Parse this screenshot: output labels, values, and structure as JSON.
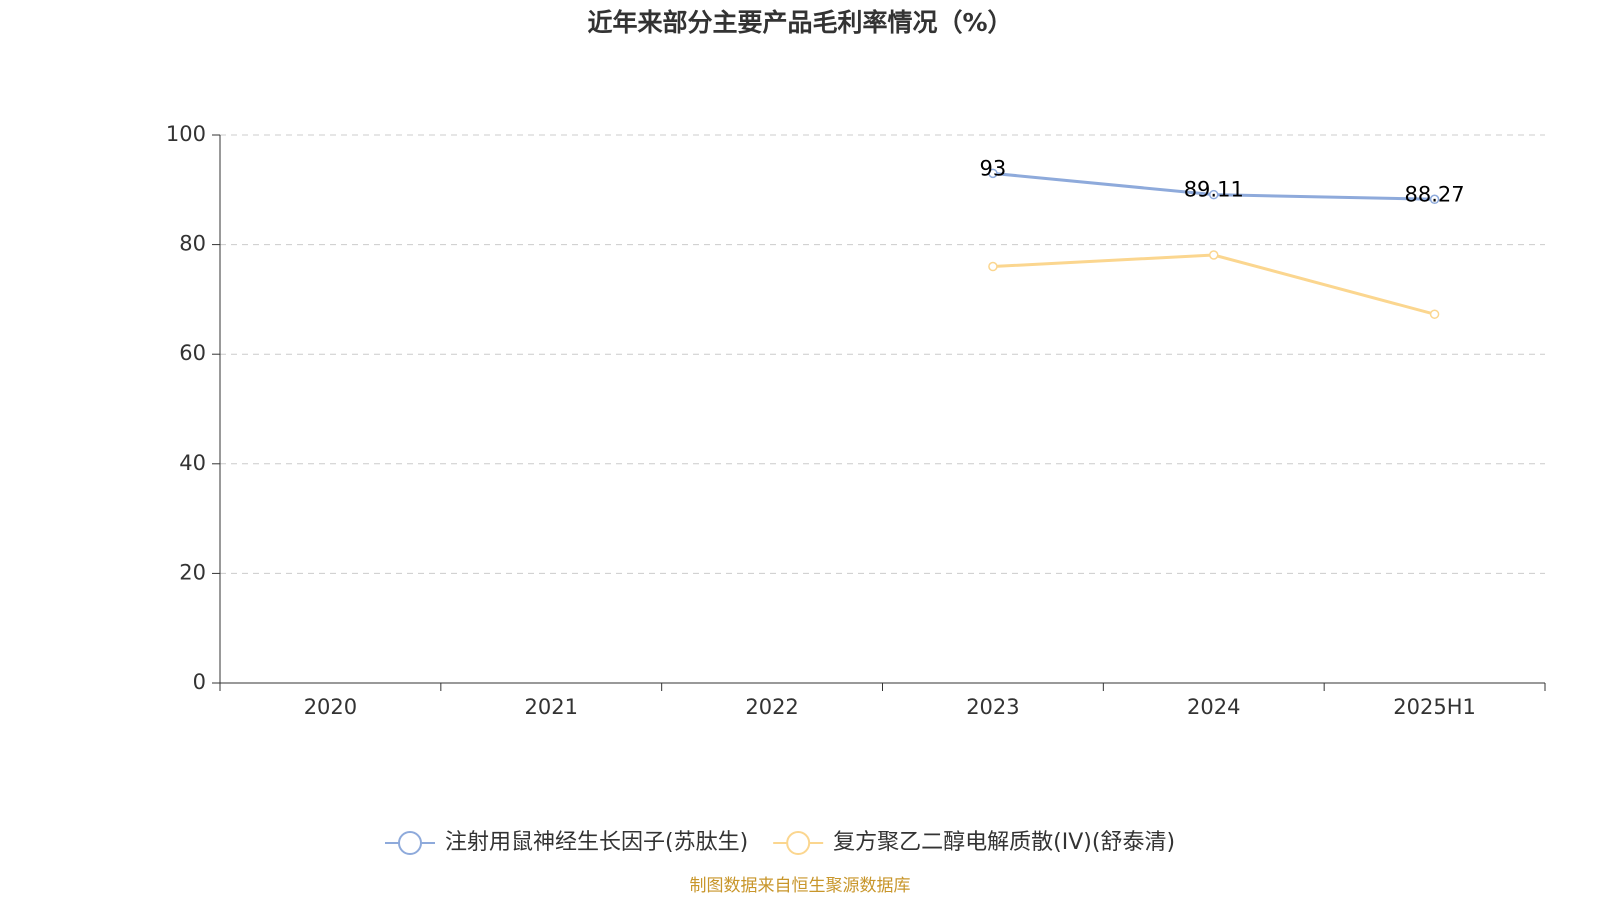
{
  "chart_data": {
    "type": "line",
    "title": "近年来部分主要产品毛利率情况（%）",
    "categories": [
      "2020",
      "2021",
      "2022",
      "2023",
      "2024",
      "2025H1"
    ],
    "series": [
      {
        "name": "注射用鼠神经生长因子(苏肽生)",
        "color": "#8eaadb",
        "labels": true,
        "values": [
          null,
          null,
          null,
          93,
          89.11,
          88.27
        ]
      },
      {
        "name": "复方聚乙二醇电解质散(IV)(舒泰清)",
        "color": "#fbd68f",
        "labels": false,
        "values": [
          null,
          null,
          null,
          76,
          78.1,
          67.3
        ]
      }
    ],
    "ylim": [
      0,
      100
    ],
    "yticks": [
      0,
      20,
      40,
      60,
      80,
      100
    ],
    "grid": true,
    "legend": "bottom",
    "source": "制图数据来自恒生聚源数据库"
  }
}
